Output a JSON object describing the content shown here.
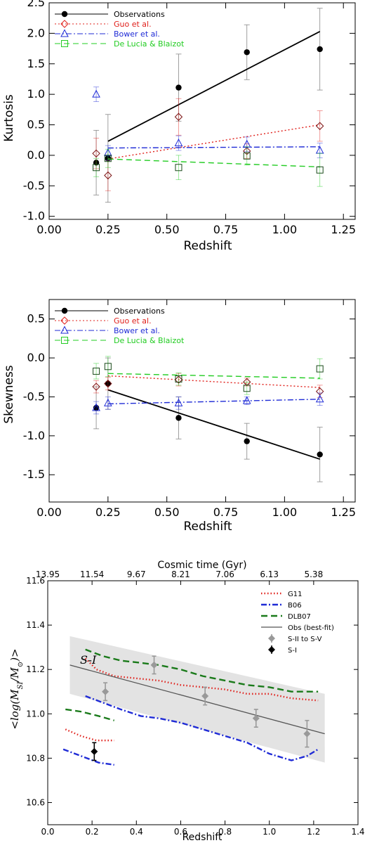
{
  "chart_data": [
    {
      "type": "scatter",
      "title": "",
      "xlabel": "Redshift",
      "ylabel": "Kurtosis",
      "xlim": [
        0.0,
        1.3
      ],
      "ylim": [
        -1.05,
        2.5
      ],
      "xticks": [
        0.0,
        0.25,
        0.5,
        0.75,
        1.0,
        1.25
      ],
      "xtick_labels": [
        "0.00",
        "0.25",
        "0.50",
        "0.75",
        "1.00",
        "1.25"
      ],
      "yticks": [
        -1.0,
        -0.5,
        0.0,
        0.5,
        1.0,
        1.5,
        2.0,
        2.5
      ],
      "ytick_labels": [
        "-1.0",
        "-0.5",
        "0.0",
        "0.5",
        "1.0",
        "1.5",
        "2.0",
        "2.5"
      ],
      "legend_position": "top-left",
      "series": [
        {
          "name": "Observations",
          "color": "#000000",
          "marker": "filled-circle",
          "x": [
            0.2,
            0.25,
            0.55,
            0.84,
            1.15
          ],
          "y": [
            -0.12,
            -0.05,
            1.11,
            1.69,
            1.74
          ],
          "err": [
            0.53,
            0.72,
            0.55,
            0.45,
            0.67
          ],
          "fit": {
            "x": [
              0.25,
              1.15
            ],
            "y": [
              0.23,
              2.03
            ],
            "dash": "solid"
          }
        },
        {
          "name": "Guo et al.",
          "color": "#e0201b",
          "marker": "diamond",
          "x": [
            0.2,
            0.25,
            0.55,
            0.84,
            1.15
          ],
          "y": [
            0.03,
            -0.33,
            0.63,
            0.07,
            0.48
          ],
          "err": [
            0.25,
            0.25,
            0.3,
            0.12,
            0.25
          ],
          "fit": {
            "x": [
              0.25,
              1.15
            ],
            "y": [
              -0.06,
              0.5
            ],
            "dash": "dot"
          }
        },
        {
          "name": "Bower et al.",
          "color": "#1f2bd6",
          "marker": "triangle",
          "x": [
            0.2,
            0.25,
            0.55,
            0.84,
            1.15
          ],
          "y": [
            1.0,
            0.04,
            0.2,
            0.18,
            0.08
          ],
          "err": [
            0.12,
            0.12,
            0.12,
            0.12,
            0.12
          ],
          "fit": {
            "x": [
              0.25,
              1.15
            ],
            "y": [
              0.12,
              0.14
            ],
            "dash": "dashdot"
          }
        },
        {
          "name": "De Lucia & Blaizot",
          "color": "#22cc22",
          "marker": "square",
          "x": [
            0.2,
            0.25,
            0.55,
            0.84,
            1.15
          ],
          "y": [
            -0.2,
            -0.05,
            -0.2,
            -0.01,
            -0.24
          ],
          "err": [
            0.15,
            0.15,
            0.2,
            0.15,
            0.27
          ],
          "fit": {
            "x": [
              0.25,
              1.15
            ],
            "y": [
              -0.06,
              -0.19
            ],
            "dash": "dash"
          }
        }
      ]
    },
    {
      "type": "scatter",
      "title": "",
      "xlabel": "Redshift",
      "ylabel": "Skewness",
      "xlim": [
        0.0,
        1.3
      ],
      "ylim": [
        -1.85,
        0.75
      ],
      "xticks": [
        0.0,
        0.25,
        0.5,
        0.75,
        1.0,
        1.25
      ],
      "xtick_labels": [
        "0.00",
        "0.25",
        "0.50",
        "0.75",
        "1.00",
        "1.25"
      ],
      "yticks": [
        -1.5,
        -1.0,
        -0.5,
        0.0,
        0.5
      ],
      "ytick_labels": [
        "-1.5",
        "-1.0",
        "-0.5",
        "0.0",
        "0.5"
      ],
      "legend_position": "top-left",
      "series": [
        {
          "name": "Observations",
          "color": "#000000",
          "marker": "filled-circle",
          "x": [
            0.2,
            0.25,
            0.55,
            0.84,
            1.15
          ],
          "y": [
            -0.64,
            -0.33,
            -0.77,
            -1.07,
            -1.24
          ],
          "err": [
            0.27,
            0.33,
            0.27,
            0.23,
            0.35
          ],
          "fit": {
            "x": [
              0.25,
              1.15
            ],
            "y": [
              -0.41,
              -1.3
            ],
            "dash": "solid"
          }
        },
        {
          "name": "Guo et al.",
          "color": "#e0201b",
          "marker": "diamond",
          "x": [
            0.2,
            0.25,
            0.55,
            0.84,
            1.15
          ],
          "y": [
            -0.37,
            -0.33,
            -0.28,
            -0.31,
            -0.43
          ],
          "err": [
            0.08,
            0.08,
            0.08,
            0.05,
            0.08
          ],
          "fit": {
            "x": [
              0.25,
              1.15
            ],
            "y": [
              -0.23,
              -0.38
            ],
            "dash": "dot"
          }
        },
        {
          "name": "Bower et al.",
          "color": "#1f2bd6",
          "marker": "triangle",
          "x": [
            0.2,
            0.25,
            0.55,
            0.84,
            1.15
          ],
          "y": [
            -0.64,
            -0.58,
            -0.58,
            -0.55,
            -0.53
          ],
          "err": [
            0.08,
            0.08,
            0.08,
            0.05,
            0.08
          ],
          "fit": {
            "x": [
              0.25,
              1.15
            ],
            "y": [
              -0.59,
              -0.53
            ],
            "dash": "dashdot"
          }
        },
        {
          "name": "De Lucia & Blaizot",
          "color": "#22cc22",
          "marker": "square",
          "x": [
            0.2,
            0.25,
            0.55,
            0.84,
            1.15
          ],
          "y": [
            -0.17,
            -0.11,
            -0.27,
            -0.39,
            -0.14
          ],
          "err": [
            0.1,
            0.13,
            0.08,
            0.08,
            0.13
          ],
          "fit": {
            "x": [
              0.25,
              1.15
            ],
            "y": [
              -0.2,
              -0.26
            ],
            "dash": "dash"
          }
        }
      ]
    },
    {
      "type": "line",
      "title": "",
      "xlabel": "Redshift",
      "ylabel": "<log(M_SI/M_⊙)>",
      "top_xlabel": "Cosmic time (Gyr)",
      "xlim": [
        0.0,
        1.4
      ],
      "ylim": [
        10.5,
        11.6
      ],
      "xticks": [
        0.0,
        0.2,
        0.4,
        0.6,
        0.8,
        1.0,
        1.2,
        1.4
      ],
      "xtick_labels": [
        "0.0",
        "0.2",
        "0.4",
        "0.6",
        "0.8",
        "1.0",
        "1.2",
        "1.4"
      ],
      "yticks": [
        10.6,
        10.8,
        11.0,
        11.2,
        11.4,
        11.6
      ],
      "ytick_labels": [
        "10.6",
        "10.8",
        "11.0",
        "11.2",
        "11.4",
        "11.6"
      ],
      "top_xtick_positions": [
        0.0,
        0.2,
        0.4,
        0.6,
        0.8,
        1.0,
        1.2
      ],
      "top_xtick_labels": [
        "13.95",
        "11.54",
        "9.67",
        "8.21",
        "7.06",
        "6.13",
        "5.38"
      ],
      "legend_position": "top-right",
      "annotation": "S-I",
      "band": {
        "x": [
          0.1,
          1.25
        ],
        "upper": [
          11.35,
          11.09
        ],
        "lower": [
          11.09,
          10.78
        ],
        "color": "#e3e3e3"
      },
      "series": [
        {
          "name": "G11",
          "color": "#e0201b",
          "dash": "dot",
          "x": [
            0.17,
            0.22,
            0.3,
            0.4,
            0.5,
            0.6,
            0.7,
            0.8,
            0.9,
            1.0,
            1.1,
            1.22
          ],
          "y": [
            11.25,
            11.2,
            11.17,
            11.16,
            11.15,
            11.13,
            11.12,
            11.11,
            11.09,
            11.09,
            11.07,
            11.06
          ]
        },
        {
          "name": "G11 (S-I)",
          "color": "#e0201b",
          "dash": "dot",
          "x": [
            0.08,
            0.15,
            0.22,
            0.3
          ],
          "y": [
            10.93,
            10.9,
            10.88,
            10.88
          ]
        },
        {
          "name": "B06",
          "color": "#1f2bd6",
          "dash": "dashdot",
          "x": [
            0.17,
            0.25,
            0.33,
            0.42,
            0.5,
            0.6,
            0.7,
            0.8,
            0.9,
            1.0,
            1.1,
            1.17,
            1.22
          ],
          "y": [
            11.08,
            11.05,
            11.02,
            10.99,
            10.98,
            10.96,
            10.93,
            10.9,
            10.87,
            10.82,
            10.79,
            10.81,
            10.84
          ]
        },
        {
          "name": "B06 (S-I)",
          "color": "#1f2bd6",
          "dash": "dashdot",
          "x": [
            0.07,
            0.15,
            0.23,
            0.3
          ],
          "y": [
            10.84,
            10.81,
            10.78,
            10.77
          ]
        },
        {
          "name": "DLB07",
          "color": "#1a7a1a",
          "dash": "dash",
          "x": [
            0.17,
            0.25,
            0.33,
            0.42,
            0.5,
            0.6,
            0.7,
            0.8,
            0.9,
            1.0,
            1.1,
            1.22
          ],
          "y": [
            11.29,
            11.26,
            11.24,
            11.23,
            11.22,
            11.2,
            11.17,
            11.15,
            11.13,
            11.12,
            11.1,
            11.1
          ]
        },
        {
          "name": "DLB07 (S-I)",
          "color": "#1a7a1a",
          "dash": "dash",
          "x": [
            0.08,
            0.15,
            0.23,
            0.3
          ],
          "y": [
            11.02,
            11.01,
            10.99,
            10.97
          ]
        },
        {
          "name": "Obs (best-fit)",
          "color": "#555555",
          "dash": "solid",
          "x": [
            0.1,
            1.25
          ],
          "y": [
            11.22,
            10.91
          ]
        }
      ],
      "points": [
        {
          "name": "S-II to S-V",
          "color": "#999999",
          "marker": "diamond",
          "x": [
            0.26,
            0.48,
            0.71,
            0.94,
            1.17
          ],
          "y": [
            11.1,
            11.22,
            11.08,
            10.98,
            10.91
          ],
          "err": [
            0.04,
            0.04,
            0.04,
            0.04,
            0.06
          ]
        },
        {
          "name": "S-I",
          "color": "#000000",
          "marker": "diamond",
          "x": [
            0.21
          ],
          "y": [
            10.83
          ],
          "err": [
            0.04
          ]
        }
      ],
      "legend": [
        "G11",
        "B06",
        "DLB07",
        "Obs (best-fit)",
        "S-II to S-V",
        "S-I"
      ]
    }
  ]
}
